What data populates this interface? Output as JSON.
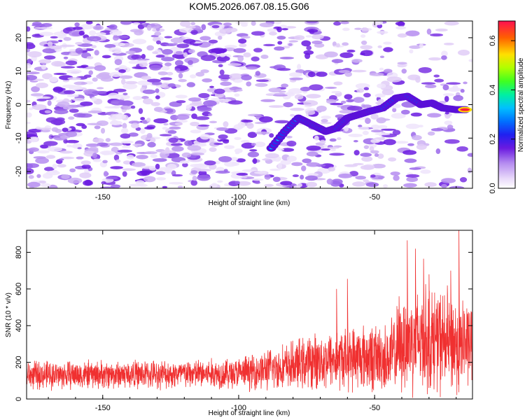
{
  "title": "KOM5.2026.067.08.15.G06",
  "chart_data": [
    {
      "type": "heatmap",
      "name": "spectrogram",
      "xlabel": "Height of straight line (km)",
      "ylabel": "Frequency (Hz)",
      "xlim": [
        -178,
        -14
      ],
      "ylim": [
        -25,
        25
      ],
      "xticks": [
        -150,
        -100,
        -50
      ],
      "xtick_labels": [
        "-150",
        "-100",
        "-50"
      ],
      "yticks": [
        -20,
        -10,
        0,
        10,
        20
      ],
      "ytick_labels": [
        "-20",
        "-10",
        "0",
        "10",
        "20"
      ],
      "colorbar": {
        "label": "Normalized spectral amplitude",
        "range": [
          0.0,
          0.68
        ],
        "ticks": [
          0.0,
          0.2,
          0.4,
          0.6
        ],
        "tick_labels": [
          "0.0",
          "0.2",
          "0.4",
          "0.6"
        ]
      },
      "signal_track": [
        {
          "x": -88,
          "y": -13
        },
        {
          "x": -83,
          "y": -8
        },
        {
          "x": -78,
          "y": -4
        },
        {
          "x": -73,
          "y": -6
        },
        {
          "x": -68,
          "y": -8
        },
        {
          "x": -64,
          "y": -7
        },
        {
          "x": -60,
          "y": -4
        },
        {
          "x": -56,
          "y": -3
        },
        {
          "x": -52,
          "y": -2
        },
        {
          "x": -47,
          "y": -1
        },
        {
          "x": -42,
          "y": 2
        },
        {
          "x": -38,
          "y": 2.5
        },
        {
          "x": -33,
          "y": 0
        },
        {
          "x": -29,
          "y": 0.5
        },
        {
          "x": -25,
          "y": -1
        },
        {
          "x": -20,
          "y": -1.5
        },
        {
          "x": -16,
          "y": -1.5
        }
      ]
    },
    {
      "type": "line",
      "name": "snr",
      "xlabel": "Height of straight line (km)",
      "ylabel": "SNR (10 * v/v)",
      "xlim": [
        -178,
        -14
      ],
      "ylim": [
        0,
        920
      ],
      "xticks": [
        -150,
        -100,
        -50
      ],
      "xtick_labels": [
        "-150",
        "-100",
        "-50"
      ],
      "yticks": [
        0,
        200,
        400,
        600,
        800
      ],
      "ytick_labels": [
        "0",
        "200",
        "400",
        "600",
        "800"
      ],
      "color": "#f03030",
      "envelope": [
        {
          "x": -178,
          "base": 130,
          "spread": 90
        },
        {
          "x": -130,
          "base": 135,
          "spread": 90
        },
        {
          "x": -100,
          "base": 140,
          "spread": 100
        },
        {
          "x": -85,
          "base": 170,
          "spread": 140
        },
        {
          "x": -70,
          "base": 210,
          "spread": 180
        },
        {
          "x": -55,
          "base": 230,
          "spread": 210
        },
        {
          "x": -45,
          "base": 220,
          "spread": 220
        },
        {
          "x": -38,
          "base": 320,
          "spread": 330
        },
        {
          "x": -30,
          "base": 330,
          "spread": 340
        },
        {
          "x": -20,
          "base": 300,
          "spread": 330
        },
        {
          "x": -14,
          "base": 300,
          "spread": 250
        }
      ],
      "peaks": [
        {
          "x": -19,
          "y": 920
        },
        {
          "x": -38,
          "y": 865
        },
        {
          "x": -35,
          "y": 820
        },
        {
          "x": -32,
          "y": 765
        },
        {
          "x": -60,
          "y": 655
        },
        {
          "x": -64,
          "y": 600
        },
        {
          "x": -30,
          "y": 680
        },
        {
          "x": -22,
          "y": 700
        },
        {
          "x": -41,
          "y": 560
        }
      ]
    }
  ]
}
